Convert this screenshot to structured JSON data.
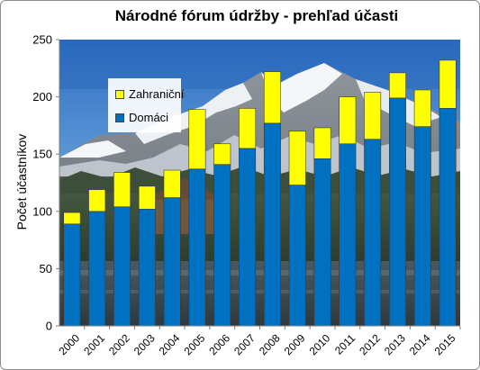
{
  "chart_data": {
    "type": "bar",
    "stacked": true,
    "title": "Národné fórum údržby  - prehľad účasti",
    "xlabel": "",
    "ylabel": "Počet  účastníkov",
    "ylim": [
      0,
      250
    ],
    "yticks": [
      0,
      50,
      100,
      150,
      200,
      250
    ],
    "grid": false,
    "legend_position": "top-left",
    "background": "photo of snowy mountains above a forest",
    "categories": [
      "2000",
      "2001",
      "2002",
      "2003",
      "2004",
      "2005",
      "2006",
      "2007",
      "2008",
      "2009",
      "2010",
      "2011",
      "2012",
      "2013",
      "2014",
      "2015"
    ],
    "series": [
      {
        "name": "Domáci",
        "color": "#0070c0",
        "values": [
          89,
          100,
          104,
          102,
          112,
          137,
          141,
          155,
          177,
          123,
          146,
          159,
          163,
          199,
          174,
          190
        ]
      },
      {
        "name": "Zahraniční",
        "color": "#ffff00",
        "values": [
          10,
          19,
          30,
          20,
          24,
          52,
          18,
          35,
          45,
          47,
          27,
          41,
          41,
          22,
          32,
          42
        ]
      }
    ],
    "legend_order": [
      "Zahraniční",
      "Domáci"
    ]
  }
}
